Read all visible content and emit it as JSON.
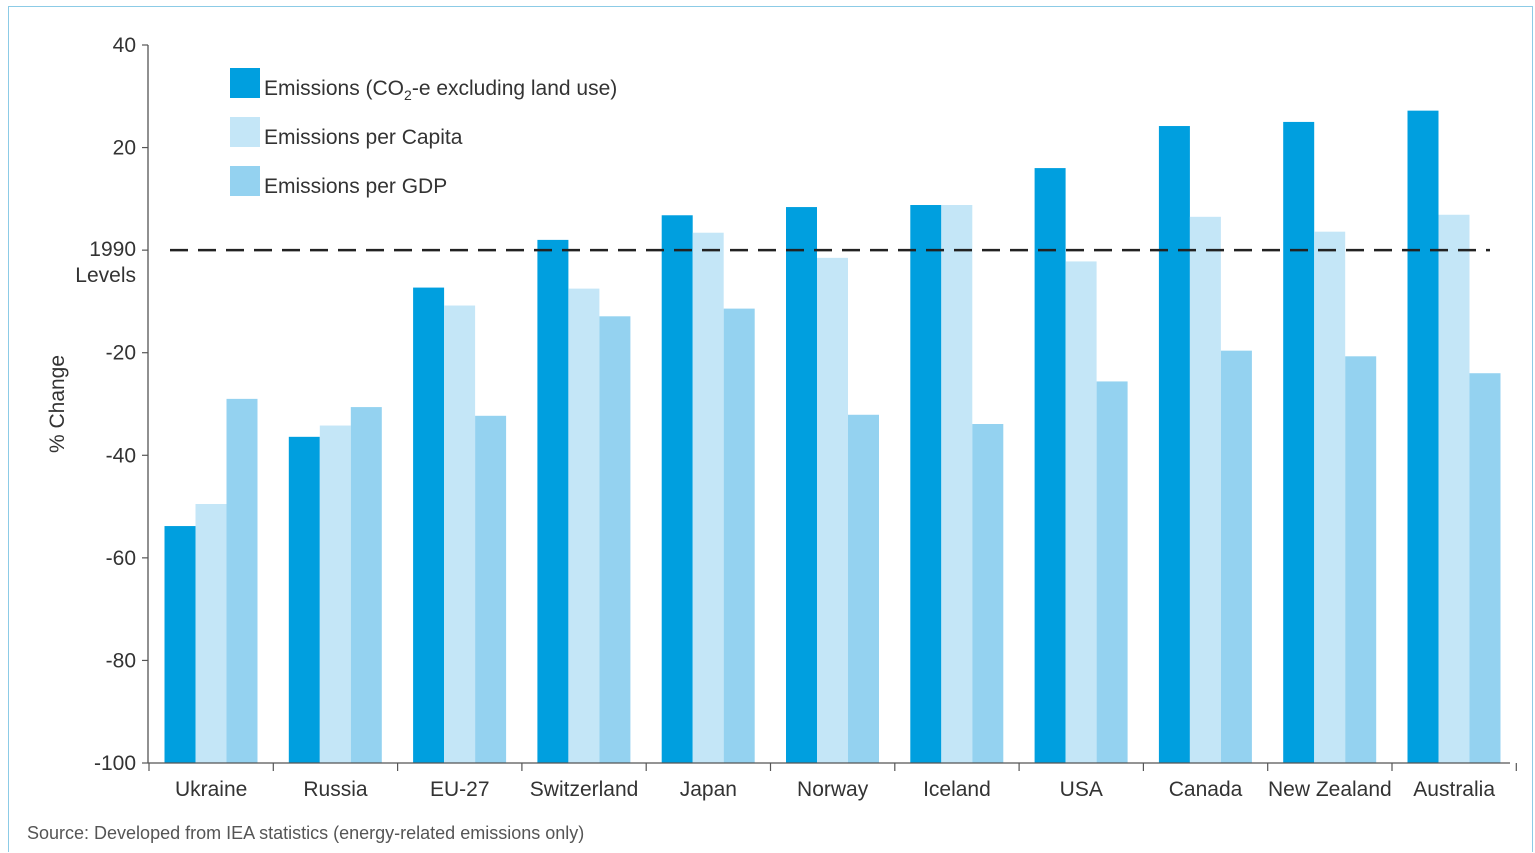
{
  "chart_data": {
    "type": "bar",
    "categories": [
      "Ukraine",
      "Russia",
      "EU-27",
      "Switzerland",
      "Japan",
      "Norway",
      "Iceland",
      "USA",
      "Canada",
      "New Zealand",
      "Australia"
    ],
    "series": [
      {
        "name": "Emissions (CO2-e excluding land use)",
        "color": "#009fdf",
        "values": [
          -53.8,
          -36.4,
          -7.3,
          2.0,
          6.8,
          8.4,
          8.8,
          16.0,
          24.2,
          25.0,
          27.2
        ]
      },
      {
        "name": "Emissions per Capita",
        "color": "#c4e6f7",
        "values": [
          -49.5,
          -34.2,
          -10.8,
          -7.5,
          3.4,
          -1.5,
          8.8,
          -2.2,
          6.5,
          3.6,
          6.9
        ]
      },
      {
        "name": "Emissions per GDP",
        "color": "#94d2f0",
        "values": [
          -29.0,
          -30.6,
          -32.3,
          -12.9,
          -11.4,
          -32.1,
          -33.9,
          -25.6,
          -19.6,
          -20.7,
          -24.0
        ]
      }
    ],
    "ylim": [
      -100,
      40
    ],
    "yticks": [
      40,
      20,
      -20,
      -40,
      -60,
      -80,
      -100
    ],
    "reference_line": {
      "value": 0,
      "label_line1": "1990",
      "label_line2": "Levels"
    },
    "ylabel": "% Change",
    "xlabel": "",
    "legend_position": "top-left",
    "grid": false
  },
  "legend": {
    "emissions_prefix": "Emissions (CO",
    "emissions_sub": "2",
    "emissions_suffix": "-e excluding land use)",
    "per_capita": "Emissions per Capita",
    "per_gdp": "Emissions per GDP"
  },
  "source": "Source: Developed from IEA statistics (energy-related emissions only)"
}
